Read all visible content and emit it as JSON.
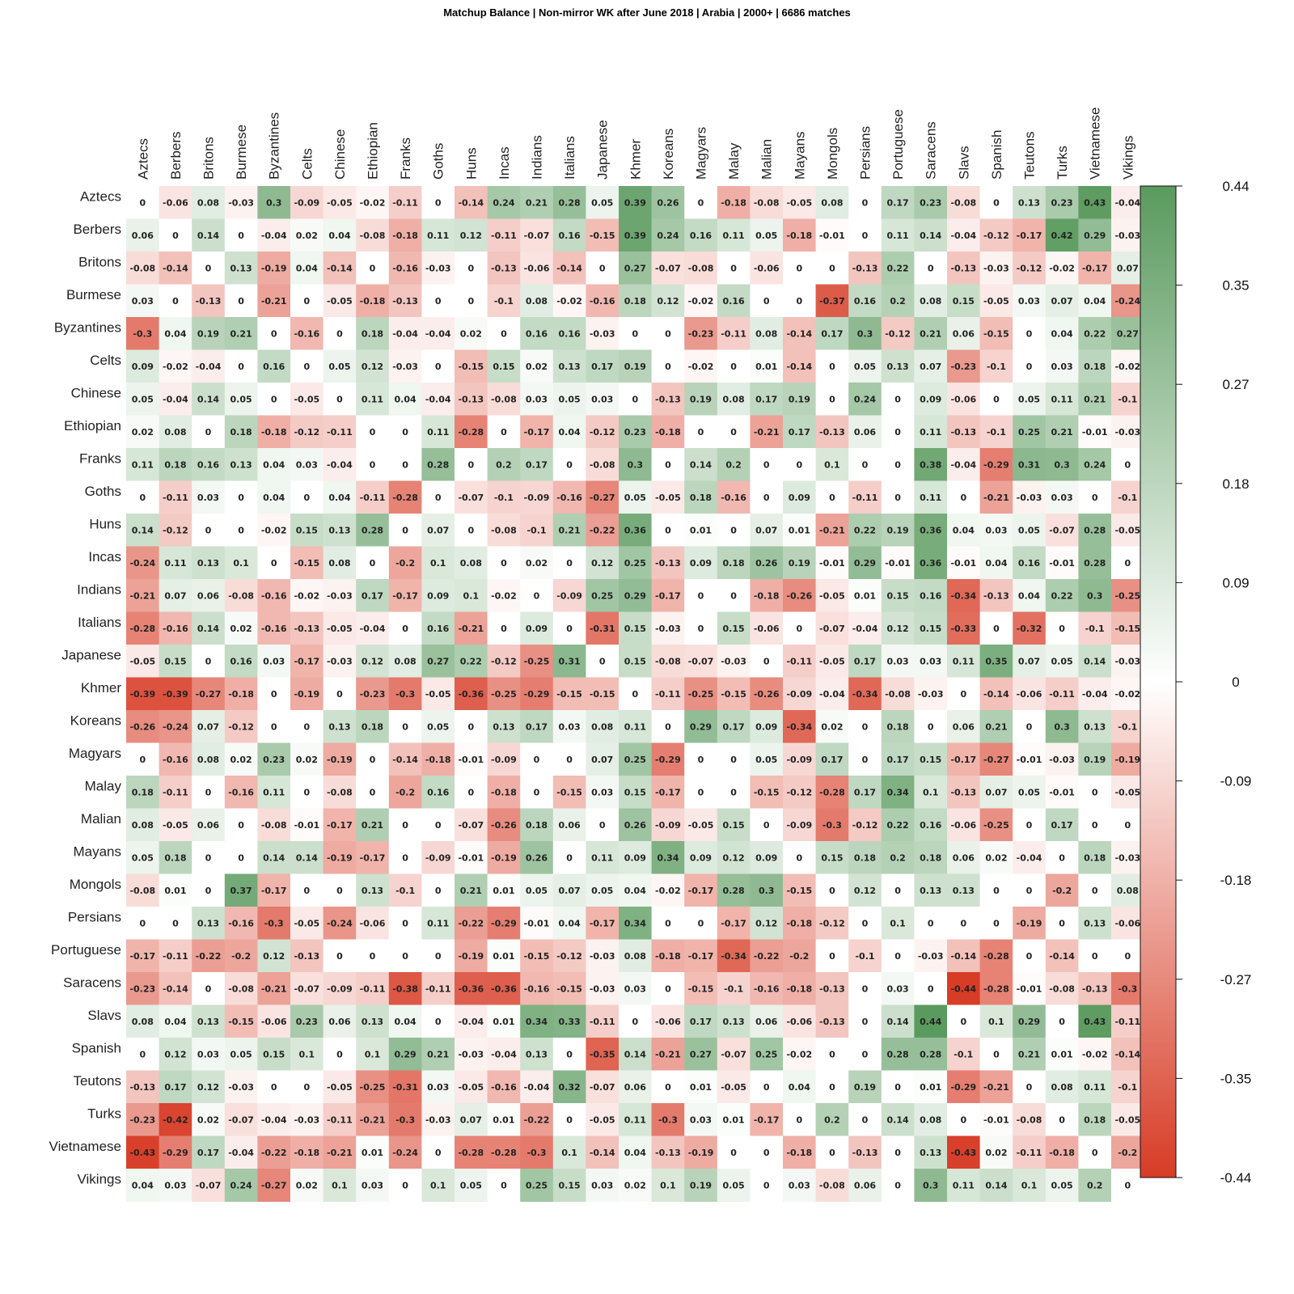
{
  "chart_data": {
    "type": "heatmap",
    "title": "Matchup Balance | Non-mirror WK  after June 2018 | Arabia | 2000+ | 6686 matches",
    "x": [
      "Aztecs",
      "Berbers",
      "Britons",
      "Burmese",
      "Byzantines",
      "Celts",
      "Chinese",
      "Ethiopian",
      "Franks",
      "Goths",
      "Huns",
      "Incas",
      "Indians",
      "Italians",
      "Japanese",
      "Khmer",
      "Koreans",
      "Magyars",
      "Malay",
      "Malian",
      "Mayans",
      "Mongols",
      "Persians",
      "Portuguese",
      "Saracens",
      "Slavs",
      "Spanish",
      "Teutons",
      "Turks",
      "Vietnamese",
      "Vikings"
    ],
    "y": [
      "Aztecs",
      "Berbers",
      "Britons",
      "Burmese",
      "Byzantines",
      "Celts",
      "Chinese",
      "Ethiopian",
      "Franks",
      "Goths",
      "Huns",
      "Incas",
      "Indians",
      "Italians",
      "Japanese",
      "Khmer",
      "Koreans",
      "Magyars",
      "Malay",
      "Malian",
      "Mayans",
      "Mongols",
      "Persians",
      "Portuguese",
      "Saracens",
      "Slavs",
      "Spanish",
      "Teutons",
      "Turks",
      "Vietnamese",
      "Vikings"
    ],
    "values": [
      [
        0,
        -0.06,
        0.08,
        -0.03,
        0.3,
        -0.09,
        -0.05,
        -0.02,
        -0.11,
        0,
        -0.14,
        0.24,
        0.21,
        0.28,
        0.05,
        0.39,
        0.26,
        0,
        -0.18,
        -0.08,
        -0.05,
        0.08,
        0,
        0.17,
        0.23,
        -0.08,
        0,
        0.13,
        0.23,
        0.43,
        -0.04
      ],
      [
        0.06,
        0,
        0.14,
        0,
        -0.04,
        0.02,
        0.04,
        -0.08,
        -0.18,
        0.11,
        0.12,
        -0.11,
        -0.07,
        0.16,
        -0.15,
        0.39,
        0.24,
        0.16,
        0.11,
        0.05,
        -0.18,
        -0.01,
        0,
        0.11,
        0.14,
        -0.04,
        -0.12,
        -0.17,
        0.42,
        0.29,
        -0.03
      ],
      [
        -0.08,
        -0.14,
        0,
        0.13,
        -0.19,
        0.04,
        -0.14,
        0,
        -0.16,
        -0.03,
        0,
        -0.13,
        -0.06,
        -0.14,
        0,
        0.27,
        -0.07,
        -0.08,
        0,
        -0.06,
        0,
        0,
        -0.13,
        0.22,
        0,
        -0.13,
        -0.03,
        -0.12,
        -0.02,
        -0.17,
        0.07
      ],
      [
        0.03,
        0,
        -0.13,
        0,
        -0.21,
        0,
        -0.05,
        -0.18,
        -0.13,
        0,
        0,
        -0.1,
        0.08,
        -0.02,
        -0.16,
        0.18,
        0.12,
        -0.02,
        0.16,
        0,
        0,
        -0.37,
        0.16,
        0.2,
        0.08,
        0.15,
        -0.05,
        0.03,
        0.07,
        0.04,
        -0.24
      ],
      [
        -0.3,
        0.04,
        0.19,
        0.21,
        0,
        -0.16,
        0,
        0.18,
        -0.04,
        -0.04,
        0.02,
        0,
        0.16,
        0.16,
        -0.03,
        0,
        0,
        -0.23,
        -0.11,
        0.08,
        -0.14,
        0.17,
        0.3,
        -0.12,
        0.21,
        0.06,
        -0.15,
        0,
        0.04,
        0.22,
        0.27
      ],
      [
        0.09,
        -0.02,
        -0.04,
        0,
        0.16,
        0,
        0.05,
        0.12,
        -0.03,
        0,
        -0.15,
        0.15,
        0.02,
        0.13,
        0.17,
        0.19,
        0,
        -0.02,
        0,
        0.01,
        -0.14,
        0,
        0.05,
        0.13,
        0.07,
        -0.23,
        -0.1,
        0,
        0.03,
        0.18,
        -0.02
      ],
      [
        0.05,
        -0.04,
        0.14,
        0.05,
        0,
        -0.05,
        0,
        0.11,
        0.04,
        -0.04,
        -0.13,
        -0.08,
        0.03,
        0.05,
        0.03,
        0,
        -0.13,
        0.19,
        0.08,
        0.17,
        0.19,
        0,
        0.24,
        0,
        0.09,
        -0.06,
        0,
        0.05,
        0.11,
        0.21,
        -0.1
      ],
      [
        0.02,
        0.08,
        0,
        0.18,
        -0.18,
        -0.12,
        -0.11,
        0,
        0,
        0.11,
        -0.28,
        0,
        -0.17,
        0.04,
        -0.12,
        0.23,
        -0.18,
        0,
        0,
        -0.21,
        0.17,
        -0.13,
        0.06,
        0,
        0.11,
        -0.13,
        -0.1,
        0.25,
        0.21,
        -0.01,
        -0.03
      ],
      [
        0.11,
        0.18,
        0.16,
        0.13,
        0.04,
        0.03,
        -0.04,
        0,
        0,
        0.28,
        0,
        0.2,
        0.17,
        0,
        -0.08,
        0.3,
        0,
        0.14,
        0.2,
        0,
        0,
        0.1,
        0,
        0,
        0.38,
        -0.04,
        -0.29,
        0.31,
        0.3,
        0.24,
        0
      ],
      [
        0,
        -0.11,
        0.03,
        0,
        0.04,
        0,
        0.04,
        -0.11,
        -0.28,
        0,
        -0.07,
        -0.1,
        -0.09,
        -0.16,
        -0.27,
        0.05,
        -0.05,
        0.18,
        -0.16,
        0,
        0.09,
        0,
        -0.11,
        0,
        0.11,
        0,
        -0.21,
        -0.03,
        0.03,
        0,
        -0.1
      ],
      [
        0.14,
        -0.12,
        0,
        0,
        -0.02,
        0.15,
        0.13,
        0.28,
        0,
        0.07,
        0,
        -0.08,
        -0.1,
        0.21,
        -0.22,
        0.36,
        0,
        0.01,
        0,
        0.07,
        0.01,
        -0.21,
        0.22,
        0.19,
        0.36,
        0.04,
        0.03,
        0.05,
        -0.07,
        0.28,
        -0.05
      ],
      [
        -0.24,
        0.11,
        0.13,
        0.1,
        0,
        -0.15,
        0.08,
        0,
        -0.2,
        0.1,
        0.08,
        0,
        0.02,
        0,
        0.12,
        0.25,
        -0.13,
        0.09,
        0.18,
        0.26,
        0.19,
        -0.01,
        0.29,
        -0.01,
        0.36,
        -0.01,
        0.04,
        0.16,
        -0.01,
        0.28,
        0
      ],
      [
        -0.21,
        0.07,
        0.06,
        -0.08,
        -0.16,
        -0.02,
        -0.03,
        0.17,
        -0.17,
        0.09,
        0.1,
        -0.02,
        0,
        -0.09,
        0.25,
        0.29,
        -0.17,
        0,
        0,
        -0.18,
        -0.26,
        -0.05,
        0.01,
        0.15,
        0.16,
        -0.34,
        -0.13,
        0.04,
        0.22,
        0.3,
        -0.25
      ],
      [
        -0.28,
        -0.16,
        0.14,
        0.02,
        -0.16,
        -0.13,
        -0.05,
        -0.04,
        0,
        0.16,
        -0.21,
        0,
        0.09,
        0,
        -0.31,
        0.15,
        -0.03,
        0,
        0.15,
        -0.06,
        0,
        -0.07,
        -0.04,
        0.12,
        0.15,
        -0.33,
        0,
        -0.32,
        0,
        -0.1,
        -0.15
      ],
      [
        -0.05,
        0.15,
        0,
        0.16,
        0.03,
        -0.17,
        -0.03,
        0.12,
        0.08,
        0.27,
        0.22,
        -0.12,
        -0.25,
        0.31,
        0,
        0.15,
        -0.08,
        -0.07,
        -0.03,
        0,
        -0.11,
        -0.05,
        0.17,
        0.03,
        0.03,
        0.11,
        0.35,
        0.07,
        0.05,
        0.14,
        -0.03
      ],
      [
        -0.39,
        -0.39,
        -0.27,
        -0.18,
        0,
        -0.19,
        0,
        -0.23,
        -0.3,
        -0.05,
        -0.36,
        -0.25,
        -0.29,
        -0.15,
        -0.15,
        0,
        -0.11,
        -0.25,
        -0.15,
        -0.26,
        -0.09,
        -0.04,
        -0.34,
        -0.08,
        -0.03,
        0,
        -0.14,
        -0.06,
        -0.11,
        -0.04,
        -0.02
      ],
      [
        -0.26,
        -0.24,
        0.07,
        -0.12,
        0,
        0,
        0.13,
        0.18,
        0,
        0.05,
        0,
        0.13,
        0.17,
        0.03,
        0.08,
        0.11,
        0,
        0.29,
        0.17,
        0.09,
        -0.34,
        0.02,
        0,
        0.18,
        0,
        0.06,
        0.21,
        0,
        0.3,
        0.13,
        -0.1
      ],
      [
        0,
        -0.16,
        0.08,
        0.02,
        0.23,
        0.02,
        -0.19,
        0,
        -0.14,
        -0.18,
        -0.01,
        -0.09,
        0,
        0,
        0.07,
        0.25,
        -0.29,
        0,
        0,
        0.05,
        -0.09,
        0.17,
        0,
        0.17,
        0.15,
        -0.17,
        -0.27,
        -0.01,
        -0.03,
        0.19,
        -0.19
      ],
      [
        0.18,
        -0.11,
        0,
        -0.16,
        0.11,
        0,
        -0.08,
        0,
        -0.2,
        0.16,
        0,
        -0.18,
        0,
        -0.15,
        0.03,
        0.15,
        -0.17,
        0,
        0,
        -0.15,
        -0.12,
        -0.28,
        0.17,
        0.34,
        0.1,
        -0.13,
        0.07,
        0.05,
        -0.01,
        0,
        -0.05
      ],
      [
        0.08,
        -0.05,
        0.06,
        0,
        -0.08,
        -0.01,
        -0.17,
        0.21,
        0,
        0,
        -0.07,
        -0.26,
        0.18,
        0.06,
        0,
        0.26,
        -0.09,
        -0.05,
        0.15,
        0,
        -0.09,
        -0.3,
        -0.12,
        0.22,
        0.16,
        -0.06,
        -0.25,
        0,
        0.17,
        0,
        0
      ],
      [
        0.05,
        0.18,
        0,
        0,
        0.14,
        0.14,
        -0.19,
        -0.17,
        0,
        -0.09,
        -0.01,
        -0.19,
        0.26,
        0,
        0.11,
        0.09,
        0.34,
        0.09,
        0.12,
        0.09,
        0,
        0.15,
        0.18,
        0.2,
        0.18,
        0.06,
        0.02,
        -0.04,
        0,
        0.18,
        -0.03
      ],
      [
        -0.08,
        0.01,
        0,
        0.37,
        -0.17,
        0,
        0,
        0.13,
        -0.1,
        0,
        0.21,
        0.01,
        0.05,
        0.07,
        0.05,
        0.04,
        -0.02,
        -0.17,
        0.28,
        0.3,
        -0.15,
        0,
        0.12,
        0,
        0.13,
        0.13,
        0,
        0,
        -0.2,
        0,
        0.08
      ],
      [
        0,
        0,
        0.13,
        -0.16,
        -0.3,
        -0.05,
        -0.24,
        -0.06,
        0,
        0.11,
        -0.22,
        -0.29,
        -0.01,
        0.04,
        -0.17,
        0.34,
        0,
        0,
        -0.17,
        0.12,
        -0.18,
        -0.12,
        0,
        0.1,
        0,
        0,
        0,
        -0.19,
        0,
        0.13,
        -0.06
      ],
      [
        -0.17,
        -0.11,
        -0.22,
        -0.2,
        0.12,
        -0.13,
        0,
        0,
        0,
        0,
        -0.19,
        0.01,
        -0.15,
        -0.12,
        -0.03,
        0.08,
        -0.18,
        -0.17,
        -0.34,
        -0.22,
        -0.2,
        0,
        -0.1,
        0,
        -0.03,
        -0.14,
        -0.28,
        0,
        -0.14,
        0,
        0
      ],
      [
        -0.23,
        -0.14,
        0,
        -0.08,
        -0.21,
        -0.07,
        -0.09,
        -0.11,
        -0.38,
        -0.11,
        -0.36,
        -0.36,
        -0.16,
        -0.15,
        -0.03,
        0.03,
        0,
        -0.15,
        -0.1,
        -0.16,
        -0.18,
        -0.13,
        0,
        0.03,
        0,
        -0.44,
        -0.28,
        -0.01,
        -0.08,
        -0.13,
        -0.3
      ],
      [
        0.08,
        0.04,
        0.13,
        -0.15,
        -0.06,
        0.23,
        0.06,
        0.13,
        0.04,
        0,
        -0.04,
        0.01,
        0.34,
        0.33,
        -0.11,
        0,
        -0.06,
        0.17,
        0.13,
        0.06,
        -0.06,
        -0.13,
        0,
        0.14,
        0.44,
        0,
        0.1,
        0.29,
        0,
        0.43,
        -0.11
      ],
      [
        0,
        0.12,
        0.03,
        0.05,
        0.15,
        0.1,
        0,
        0.1,
        0.29,
        0.21,
        -0.03,
        -0.04,
        0.13,
        0,
        -0.35,
        0.14,
        -0.21,
        0.27,
        -0.07,
        0.25,
        -0.02,
        0,
        0,
        0.28,
        0.28,
        -0.1,
        0,
        0.21,
        0.01,
        -0.02,
        -0.14
      ],
      [
        -0.13,
        0.17,
        0.12,
        -0.03,
        0,
        0,
        -0.05,
        -0.25,
        -0.31,
        0.03,
        -0.05,
        -0.16,
        -0.04,
        0.32,
        -0.07,
        0.06,
        0,
        0.01,
        -0.05,
        0,
        0.04,
        0,
        0.19,
        0,
        0.01,
        -0.29,
        -0.21,
        0,
        0.08,
        0.11,
        -0.1
      ],
      [
        -0.23,
        -0.42,
        0.02,
        -0.07,
        -0.04,
        -0.03,
        -0.11,
        -0.21,
        -0.3,
        -0.03,
        0.07,
        0.01,
        -0.22,
        0,
        -0.05,
        0.11,
        -0.3,
        0.03,
        0.01,
        -0.17,
        0,
        0.2,
        0,
        0.14,
        0.08,
        0,
        -0.01,
        -0.08,
        0,
        0.18,
        -0.05
      ],
      [
        -0.43,
        -0.29,
        0.17,
        -0.04,
        -0.22,
        -0.18,
        -0.21,
        0.01,
        -0.24,
        0,
        -0.28,
        -0.28,
        -0.3,
        0.1,
        -0.14,
        0.04,
        -0.13,
        -0.19,
        0,
        0,
        -0.18,
        0,
        -0.13,
        0,
        0.13,
        -0.43,
        0.02,
        -0.11,
        -0.18,
        0,
        -0.2
      ],
      [
        0.04,
        0.03,
        -0.07,
        0.24,
        -0.27,
        0.02,
        0.1,
        0.03,
        0,
        0.1,
        0.05,
        0,
        0.25,
        0.15,
        0.03,
        0.02,
        0.1,
        0.19,
        0.05,
        0,
        0.03,
        -0.08,
        0.06,
        0,
        0.3,
        0.11,
        0.14,
        0.1,
        0.05,
        0.2,
        0
      ]
    ],
    "zlim": [
      -0.44,
      0.44
    ],
    "colorbar": {
      "ticks": [
        "0.44",
        "0.35",
        "0.27",
        "0.18",
        "0.09",
        "0",
        "-0.09",
        "-0.18",
        "-0.27",
        "-0.35",
        "-0.44"
      ],
      "position": "right"
    },
    "colors": {
      "low": "#d73c26",
      "mid": "#ffffff",
      "high": "#5a9a5e"
    },
    "grid": false
  }
}
